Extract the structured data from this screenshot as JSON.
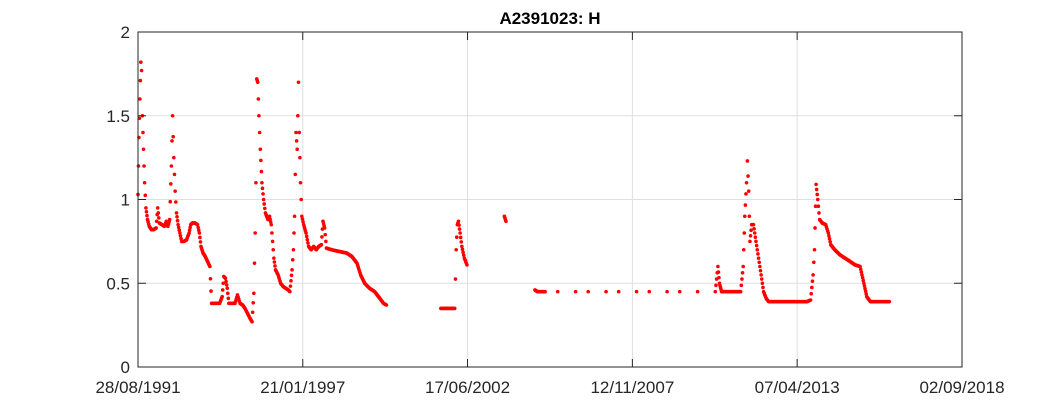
{
  "chart_data": {
    "type": "scatter",
    "title": "A2391023: H",
    "xlabel": "",
    "ylabel": "",
    "x_is_date": true,
    "xlim": [
      "1991-08-28",
      "2018-09-02"
    ],
    "ylim": [
      0,
      2
    ],
    "x_ticks": [
      "28/08/1991",
      "21/01/1997",
      "17/06/2002",
      "12/11/2007",
      "07/04/2013",
      "02/09/2018"
    ],
    "y_ticks": [
      "0",
      "0.5",
      "1",
      "1.5",
      "2"
    ],
    "grid": true,
    "marker_color": "#ff0000",
    "series": [
      {
        "points": [
          [
            "1991-08-28",
            1.03
          ],
          [
            "1991-09-08",
            1.37
          ],
          [
            "1991-09-20",
            1.6
          ],
          [
            "1991-10-01",
            1.82
          ],
          [
            "1991-10-10",
            1.77
          ],
          [
            "1991-10-20",
            1.5
          ],
          [
            "1991-11-02",
            1.3
          ],
          [
            "1991-11-15",
            1.1
          ],
          [
            "1991-12-01",
            0.95
          ],
          [
            "1991-12-20",
            0.88
          ],
          [
            "1992-01-10",
            0.84
          ],
          [
            "1992-02-05",
            0.82
          ],
          [
            "1992-03-01",
            0.82
          ],
          [
            "1992-04-01",
            0.83
          ],
          [
            "1992-04-20",
            0.95
          ],
          [
            "1992-05-10",
            0.86
          ],
          [
            "1992-06-10",
            0.85
          ],
          [
            "1992-07-10",
            0.84
          ],
          [
            "1992-08-01",
            0.87
          ],
          [
            "1992-08-20",
            0.84
          ],
          [
            "1992-09-10",
            0.88
          ],
          [
            "1992-10-01",
            1.2
          ],
          [
            "1992-10-15",
            1.5
          ],
          [
            "1992-10-30",
            1.25
          ],
          [
            "1992-11-15",
            1.05
          ],
          [
            "1992-12-01",
            0.92
          ],
          [
            "1992-12-20",
            0.85
          ],
          [
            "1993-01-10",
            0.8
          ],
          [
            "1993-02-01",
            0.75
          ],
          [
            "1993-03-01",
            0.75
          ],
          [
            "1993-04-01",
            0.76
          ],
          [
            "1993-05-01",
            0.8
          ],
          [
            "1993-05-20",
            0.85
          ],
          [
            "1993-06-10",
            0.86
          ],
          [
            "1993-07-10",
            0.86
          ],
          [
            "1993-08-10",
            0.85
          ],
          [
            "1993-09-01",
            0.8
          ],
          [
            "1993-09-20",
            0.72
          ],
          [
            "1993-10-15",
            0.68
          ],
          [
            "1993-11-10",
            0.66
          ],
          [
            "1994-01-05",
            0.6
          ],
          [
            "1994-01-25",
            0.38
          ],
          [
            "1994-03-01",
            0.38
          ],
          [
            "1994-04-01",
            0.38
          ],
          [
            "1994-05-01",
            0.38
          ],
          [
            "1994-06-01",
            0.42
          ],
          [
            "1994-06-20",
            0.54
          ],
          [
            "1994-07-10",
            0.53
          ],
          [
            "1994-08-01",
            0.47
          ],
          [
            "1994-08-20",
            0.38
          ],
          [
            "1994-10-01",
            0.38
          ],
          [
            "1994-11-01",
            0.38
          ],
          [
            "1994-12-01",
            0.43
          ],
          [
            "1995-01-01",
            0.38
          ],
          [
            "1995-02-01",
            0.37
          ],
          [
            "1995-03-01",
            0.35
          ],
          [
            "1995-04-01",
            0.32
          ],
          [
            "1995-05-01",
            0.29
          ],
          [
            "1995-05-25",
            0.27
          ],
          [
            "1995-06-15",
            0.44
          ],
          [
            "1995-07-01",
            0.8
          ],
          [
            "1995-07-10",
            1.1
          ],
          [
            "1995-07-20",
            1.72
          ],
          [
            "1995-08-01",
            1.7
          ],
          [
            "1995-08-15",
            1.5
          ],
          [
            "1995-09-01",
            1.3
          ],
          [
            "1995-09-20",
            1.1
          ],
          [
            "1995-10-10",
            1.0
          ],
          [
            "1995-11-01",
            0.92
          ],
          [
            "1995-12-01",
            0.88
          ],
          [
            "1995-12-20",
            0.9
          ],
          [
            "1996-01-10",
            0.85
          ],
          [
            "1996-02-10",
            0.65
          ],
          [
            "1996-03-01",
            0.58
          ],
          [
            "1996-04-01",
            0.55
          ],
          [
            "1996-05-01",
            0.5
          ],
          [
            "1996-06-01",
            0.48
          ],
          [
            "1996-07-01",
            0.47
          ],
          [
            "1996-08-01",
            0.46
          ],
          [
            "1996-08-20",
            0.45
          ],
          [
            "1996-09-15",
            0.58
          ],
          [
            "1996-10-01",
            0.7
          ],
          [
            "1996-10-15",
            0.9
          ],
          [
            "1996-11-01",
            1.4
          ],
          [
            "1996-11-15",
            1.3
          ],
          [
            "1996-12-01",
            1.7
          ],
          [
            "1996-12-10",
            1.4
          ],
          [
            "1996-12-25",
            1.1
          ],
          [
            "1997-01-10",
            0.9
          ],
          [
            "1997-02-01",
            0.85
          ],
          [
            "1997-03-01",
            0.8
          ],
          [
            "1997-04-01",
            0.72
          ],
          [
            "1997-05-01",
            0.7
          ],
          [
            "1997-06-01",
            0.72
          ],
          [
            "1997-07-01",
            0.7
          ],
          [
            "1997-08-01",
            0.72
          ],
          [
            "1997-09-01",
            0.73
          ],
          [
            "1997-09-20",
            0.87
          ],
          [
            "1997-10-10",
            0.83
          ],
          [
            "1997-11-01",
            0.71
          ],
          [
            "1998-01-01",
            0.7
          ],
          [
            "1998-04-01",
            0.69
          ],
          [
            "1998-07-01",
            0.68
          ],
          [
            "1998-09-01",
            0.66
          ],
          [
            "1998-11-01",
            0.62
          ],
          [
            "1998-12-15",
            0.55
          ],
          [
            "1999-02-01",
            0.5
          ],
          [
            "1999-04-01",
            0.47
          ],
          [
            "1999-06-01",
            0.45
          ],
          [
            "1999-08-01",
            0.41
          ],
          [
            "1999-09-15",
            0.38
          ],
          [
            "1999-10-20",
            0.37
          ],
          [
            "2001-08-01",
            0.35
          ],
          [
            "2001-09-15",
            0.35
          ],
          [
            "2001-11-01",
            0.35
          ],
          [
            "2001-12-20",
            0.35
          ],
          [
            "2002-01-15",
            0.35
          ],
          [
            "2002-02-01",
            0.7
          ],
          [
            "2002-02-15",
            0.85
          ],
          [
            "2002-03-01",
            0.87
          ],
          [
            "2002-03-20",
            0.8
          ],
          [
            "2002-04-10",
            0.72
          ],
          [
            "2002-05-10",
            0.65
          ],
          [
            "2002-06-10",
            0.61
          ],
          [
            "2003-09-01",
            0.9
          ],
          [
            "2003-09-20",
            0.87
          ],
          [
            "2004-09-01",
            0.46
          ],
          [
            "2004-10-01",
            0.45
          ],
          [
            "2005-01-01",
            0.45
          ],
          [
            "2005-06-01",
            0.45
          ],
          [
            "2006-01-01",
            0.45
          ],
          [
            "2006-06-01",
            0.45
          ],
          [
            "2007-01-01",
            0.45
          ],
          [
            "2007-06-01",
            0.45
          ],
          [
            "2008-01-01",
            0.45
          ],
          [
            "2008-06-01",
            0.45
          ],
          [
            "2009-01-01",
            0.45
          ],
          [
            "2009-06-01",
            0.45
          ],
          [
            "2010-01-01",
            0.45
          ],
          [
            "2010-08-01",
            0.45
          ],
          [
            "2010-09-01",
            0.6
          ],
          [
            "2010-09-20",
            0.5
          ],
          [
            "2010-10-15",
            0.45
          ],
          [
            "2011-02-01",
            0.45
          ],
          [
            "2011-06-01",
            0.45
          ],
          [
            "2011-07-01",
            0.6
          ],
          [
            "2011-07-20",
            0.9
          ],
          [
            "2011-08-10",
            1.1
          ],
          [
            "2011-08-20",
            1.23
          ],
          [
            "2011-09-05",
            1.05
          ],
          [
            "2011-09-20",
            0.75
          ],
          [
            "2011-10-10",
            0.85
          ],
          [
            "2011-11-01",
            0.85
          ],
          [
            "2011-12-01",
            0.75
          ],
          [
            "2012-01-01",
            0.65
          ],
          [
            "2012-02-01",
            0.55
          ],
          [
            "2012-03-01",
            0.45
          ],
          [
            "2012-04-01",
            0.41
          ],
          [
            "2012-05-01",
            0.39
          ],
          [
            "2012-08-01",
            0.39
          ],
          [
            "2012-12-01",
            0.39
          ],
          [
            "2013-04-01",
            0.39
          ],
          [
            "2013-08-01",
            0.39
          ],
          [
            "2013-09-15",
            0.4
          ],
          [
            "2013-10-15",
            0.55
          ],
          [
            "2013-11-01",
            0.7
          ],
          [
            "2013-11-20",
            1.09
          ],
          [
            "2013-12-10",
            1.0
          ],
          [
            "2014-01-01",
            0.88
          ],
          [
            "2014-02-01",
            0.86
          ],
          [
            "2014-03-15",
            0.85
          ],
          [
            "2014-04-15",
            0.8
          ],
          [
            "2014-05-15",
            0.73
          ],
          [
            "2014-07-01",
            0.7
          ],
          [
            "2014-09-01",
            0.67
          ],
          [
            "2014-11-01",
            0.65
          ],
          [
            "2015-01-01",
            0.63
          ],
          [
            "2015-03-01",
            0.61
          ],
          [
            "2015-05-01",
            0.6
          ],
          [
            "2015-06-15",
            0.5
          ],
          [
            "2015-07-20",
            0.42
          ],
          [
            "2015-09-01",
            0.39
          ],
          [
            "2015-12-01",
            0.39
          ],
          [
            "2016-03-01",
            0.39
          ],
          [
            "2016-04-15",
            0.39
          ]
        ]
      }
    ]
  }
}
